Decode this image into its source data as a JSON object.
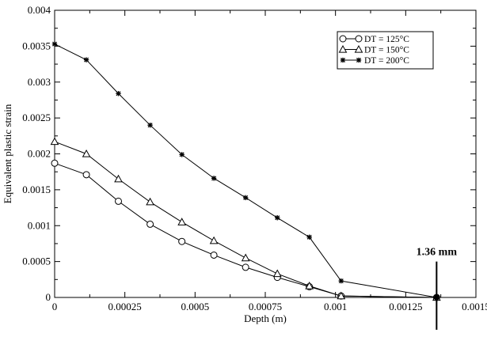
{
  "chart_data": {
    "type": "line",
    "xlabel": "Depth (m)",
    "ylabel": "Equivalent plastic strain",
    "xlim": [
      0,
      0.0015
    ],
    "ylim": [
      0,
      0.004
    ],
    "x_ticks": [
      {
        "value": 0,
        "label": "0"
      },
      {
        "value": 0.00025,
        "label": "0.00025"
      },
      {
        "value": 0.0005,
        "label": "0.0005"
      },
      {
        "value": 0.00075,
        "label": "0.00075"
      },
      {
        "value": 0.001,
        "label": "0.001"
      },
      {
        "value": 0.00125,
        "label": "0.00125"
      },
      {
        "value": 0.0015,
        "label": "0.0015"
      }
    ],
    "y_ticks": [
      {
        "value": 0,
        "label": "0"
      },
      {
        "value": 0.0005,
        "label": "0.0005"
      },
      {
        "value": 0.001,
        "label": "0.001"
      },
      {
        "value": 0.0015,
        "label": "0.0015"
      },
      {
        "value": 0.002,
        "label": "0.002"
      },
      {
        "value": 0.0025,
        "label": "0.0025"
      },
      {
        "value": 0.003,
        "label": "0.003"
      },
      {
        "value": 0.0035,
        "label": "0.0035"
      },
      {
        "value": 0.004,
        "label": "0.004"
      }
    ],
    "grid": false,
    "legend_position": "top-right",
    "series": [
      {
        "name": "DT = 125°C",
        "marker": "circle",
        "x": [
          0,
          0.000113,
          0.000227,
          0.00034,
          0.000453,
          0.000567,
          0.00068,
          0.000793,
          0.000907,
          0.00102,
          0.00136
        ],
        "y": [
          0.00187,
          0.00171,
          0.00134,
          0.00102,
          0.00078,
          0.00059,
          0.00042,
          0.00028,
          0.00015,
          2e-05,
          0
        ]
      },
      {
        "name": "DT = 150°C",
        "marker": "triangle",
        "x": [
          0,
          0.000113,
          0.000227,
          0.00034,
          0.000453,
          0.000567,
          0.00068,
          0.000793,
          0.000907,
          0.00102,
          0.00136
        ],
        "y": [
          0.00217,
          0.002,
          0.00165,
          0.00133,
          0.00105,
          0.00079,
          0.00055,
          0.00033,
          0.00016,
          2e-05,
          0
        ]
      },
      {
        "name": "DT = 200°C",
        "marker": "star",
        "x": [
          0,
          0.000113,
          0.000227,
          0.00034,
          0.000453,
          0.000567,
          0.00068,
          0.000793,
          0.000907,
          0.00102,
          0.00136
        ],
        "y": [
          0.00353,
          0.00331,
          0.00284,
          0.0024,
          0.00199,
          0.00166,
          0.00139,
          0.00111,
          0.00084,
          0.00023,
          0
        ]
      }
    ],
    "annotations": [
      {
        "text": "1.36 mm",
        "x": 0.00136,
        "marker_range": [
          -0.00045,
          0.0005
        ]
      }
    ]
  }
}
